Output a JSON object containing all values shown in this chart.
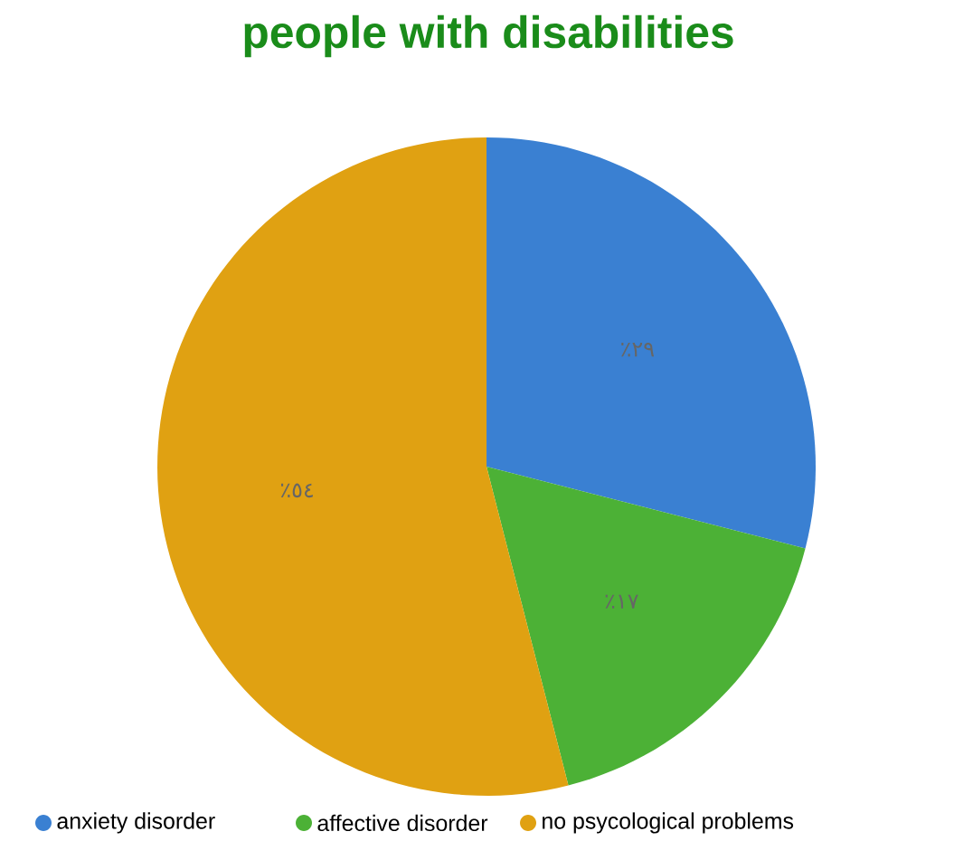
{
  "chart_data": {
    "type": "pie",
    "title": "people with disabilities",
    "categories": [
      "anxiety disorder",
      "affective disorder",
      "no psycological problems"
    ],
    "values": [
      29,
      17,
      54
    ],
    "colors": [
      "#3a80d2",
      "#4cb136",
      "#e0a112"
    ],
    "value_labels": [
      "٪٢٩",
      "٪١٧",
      "٪٥٤"
    ],
    "legend": "bottom"
  }
}
